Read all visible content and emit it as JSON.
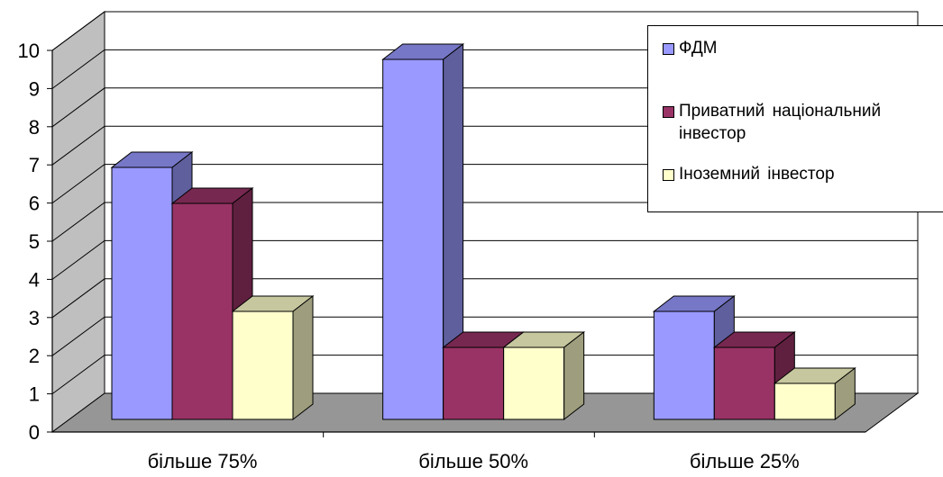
{
  "chart_data": {
    "type": "bar",
    "title": "",
    "xlabel": "",
    "ylabel": "",
    "categories": [
      "більше 75%",
      "більше 50%",
      "більше 25%"
    ],
    "ylim": [
      0,
      10
    ],
    "y_ticks": [
      "0",
      "1",
      "2",
      "3",
      "4",
      "5",
      "6",
      "7",
      "8",
      "9",
      "10"
    ],
    "grid": true,
    "style": "3d-clustered",
    "legend_position": "top-right",
    "series": [
      {
        "name": "ФДМ",
        "values": [
          7,
          10,
          3
        ],
        "color": "#9999ff"
      },
      {
        "name": "Приватний національний\nінвестор",
        "values": [
          6,
          2,
          2
        ],
        "color": "#993366"
      },
      {
        "name": "Іноземний інвестор",
        "values": [
          3,
          2,
          1
        ],
        "color": "#ffffcc"
      }
    ]
  }
}
